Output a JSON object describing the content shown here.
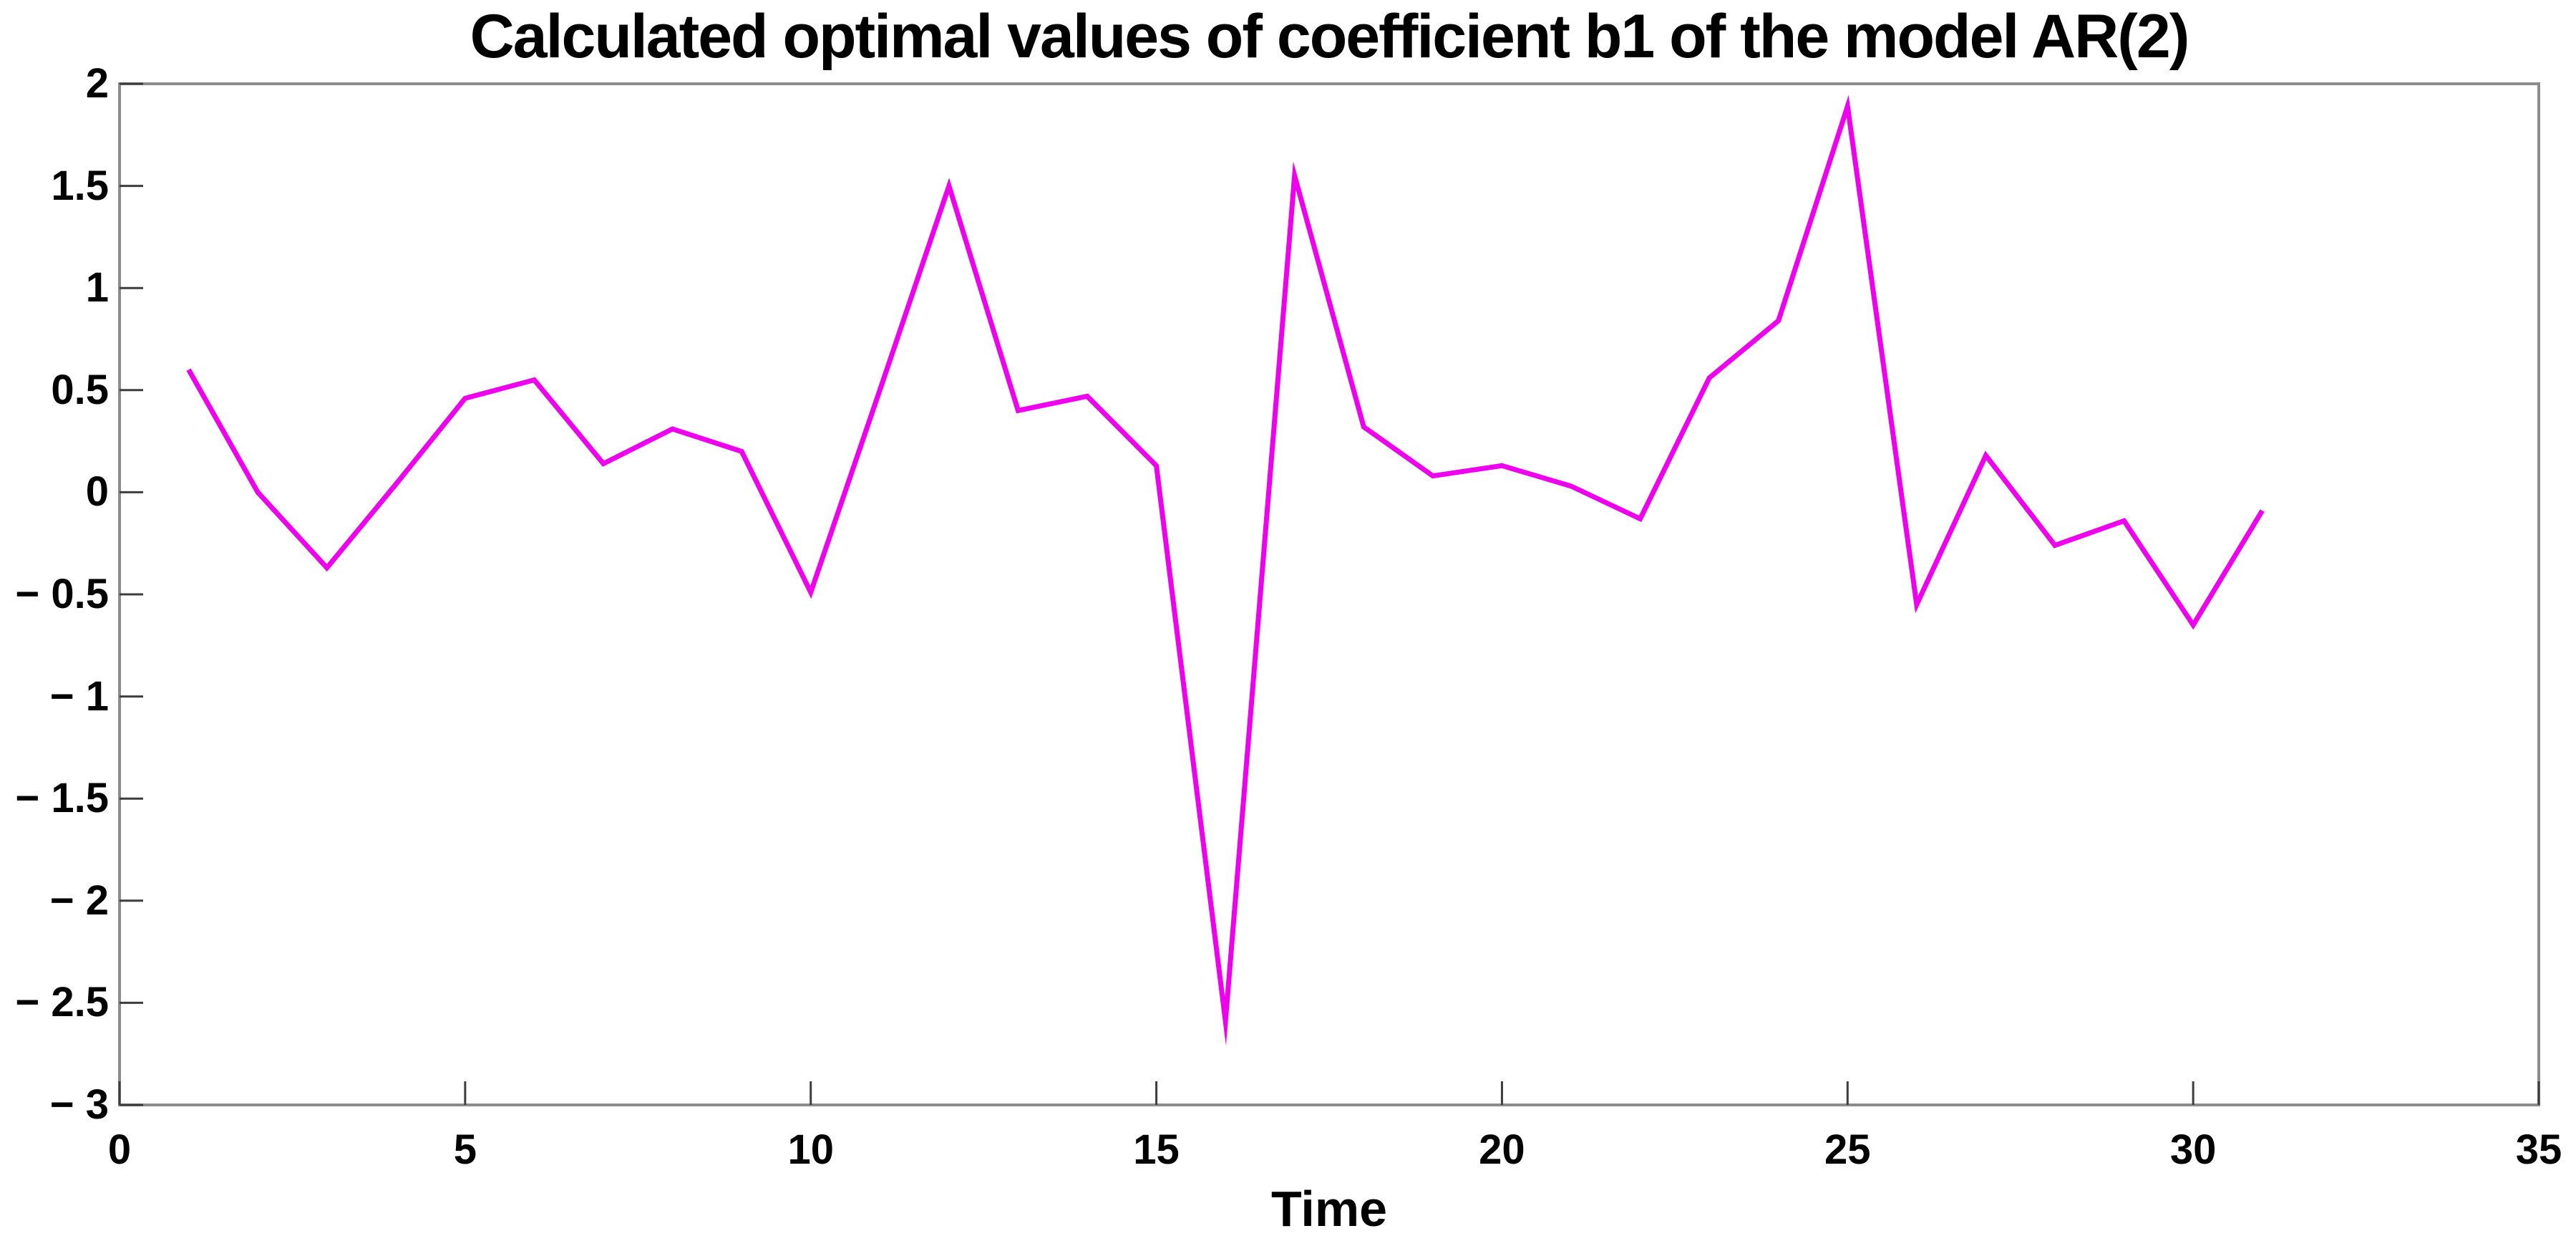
{
  "figure": {
    "background": "#ffffff"
  },
  "chart_data": {
    "type": "line",
    "title": "Calculated optimal values of coefficient b1 of the model AR(2)",
    "xlabel": "Time",
    "ylabel": "",
    "x": [
      1,
      2,
      3,
      4,
      5,
      6,
      7,
      8,
      9,
      10,
      11,
      12,
      13,
      14,
      15,
      16,
      17,
      18,
      19,
      20,
      21,
      22,
      23,
      24,
      25,
      26,
      27,
      28,
      29,
      30,
      31
    ],
    "values": [
      0.6,
      0.0,
      -0.37,
      0.04,
      0.46,
      0.55,
      0.14,
      0.31,
      0.2,
      -0.49,
      0.5,
      1.5,
      0.4,
      0.47,
      0.13,
      -2.59,
      1.55,
      0.32,
      0.08,
      0.13,
      0.03,
      -0.13,
      0.56,
      0.84,
      1.89,
      -0.55,
      0.18,
      -0.26,
      -0.14,
      -0.65,
      -0.09
    ],
    "xlim": [
      0,
      35
    ],
    "ylim": [
      -3,
      2
    ],
    "xticks": {
      "values": [
        0,
        5,
        10,
        15,
        20,
        25,
        30,
        35
      ],
      "labels": [
        "0",
        "5",
        "10",
        "15",
        "20",
        "25",
        "30",
        "35"
      ]
    },
    "yticks": {
      "values": [
        2,
        1.5,
        1,
        0.5,
        0,
        -0.5,
        -1,
        -1.5,
        -2,
        -2.5,
        -3
      ],
      "labels": [
        "2",
        "1.5",
        "1",
        "0.5",
        "0",
        "− 0.5",
        "− 1",
        "− 1.5",
        "− 2",
        "− 2.5",
        "− 3"
      ]
    },
    "grid": false,
    "legend": null,
    "line_color": "#EE00EE",
    "axis_color": "#8C8C8C",
    "tick_color": "#3D3D3D",
    "text_color": "#000000"
  }
}
